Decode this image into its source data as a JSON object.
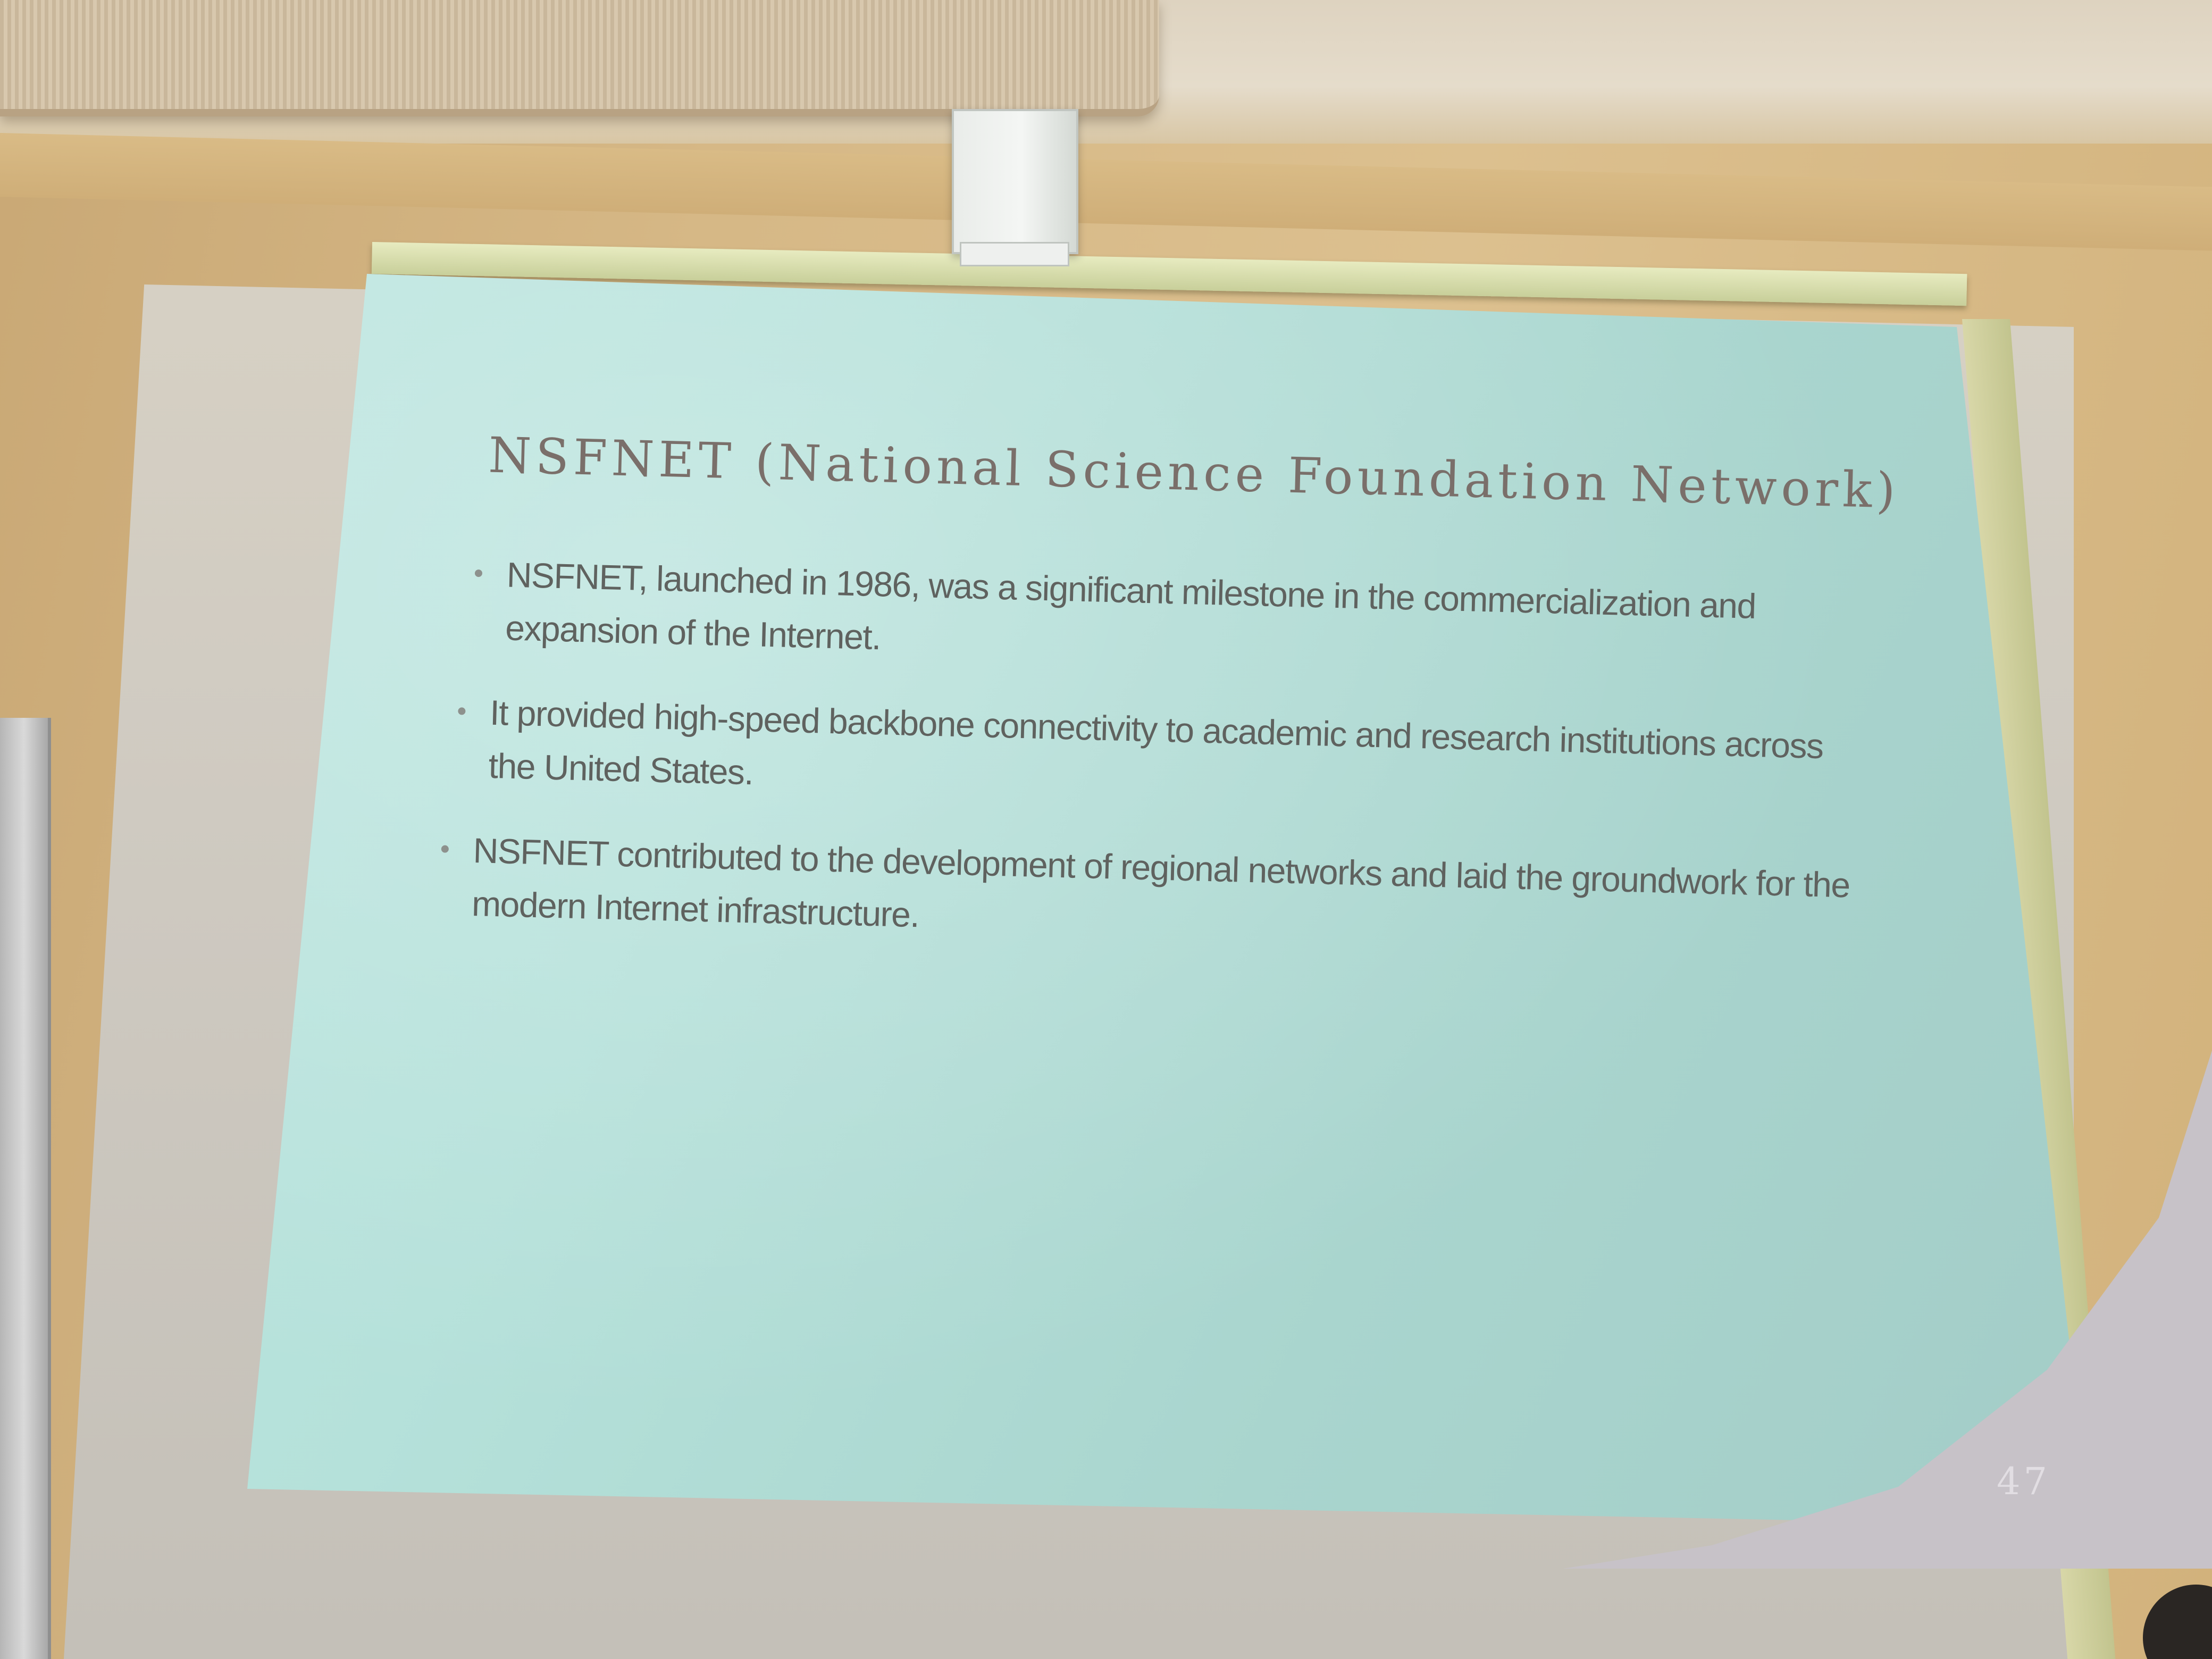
{
  "slide": {
    "title": "NSFNET (National Science Foundation Network)",
    "bullets": [
      "NSFNET, launched in 1986, was a significant milestone in the commercialization and expansion of the Internet.",
      "It provided high-speed backbone connectivity to academic and research institutions across the United States.",
      "NSFNET contributed to the development of regional networks and laid the groundwork for the modern Internet infrastructure."
    ],
    "page_number": "47"
  },
  "colors": {
    "slide_background": "#b5e1da",
    "title_text": "#7a6f6a",
    "body_text": "#5f625f",
    "wall": "#d6b886"
  }
}
